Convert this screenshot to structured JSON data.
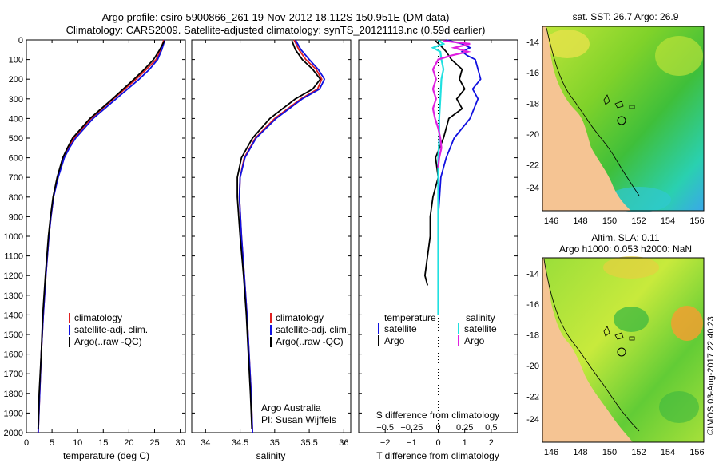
{
  "header": {
    "title_line1": "Argo profile: csiro 5900866_261 19-Nov-2012 18.112S 150.951E (DM data)",
    "title_line2": "Climatology: CARS2009. Satellite-adjusted climatology: synTS_20121119.nc (0.59d earlier)"
  },
  "colors": {
    "climatology": "#e02020",
    "satellite": "#1010e0",
    "argo": "#000000",
    "sal_satellite": "#20e0e0",
    "sal_argo": "#e020e0"
  },
  "legend": {
    "climatology": "climatology",
    "satellite_adj": "satellite-adj. clim.",
    "argo": "Argo(..raw -QC)"
  },
  "diff_legend": {
    "temperature": "temperature",
    "salinity": "salinity",
    "satellite": "satellite",
    "argo": "Argo"
  },
  "credit": {
    "line1": "Argo Australia",
    "line2": "PI: Susan Wijffels"
  },
  "depth_ticks": [
    0,
    100,
    200,
    300,
    400,
    500,
    600,
    700,
    800,
    900,
    1000,
    1100,
    1200,
    1300,
    1400,
    1500,
    1600,
    1700,
    1800,
    1900,
    2000
  ],
  "maps": {
    "sst_title": "sat. SST: 26.7 Argo: 26.9",
    "sla_title1": "Altim. SLA: 0.11",
    "sla_title2": "Argo h1000: 0.053 h2000: NaN",
    "lat_ticks": [
      "-14",
      "-16",
      "-18",
      "-20",
      "-22",
      "-24"
    ],
    "lon_ticks": [
      "146",
      "148",
      "150",
      "152",
      "154",
      "156"
    ],
    "float_lon": 150.951,
    "float_lat": -18.112
  },
  "watermark": "©IMOS 03-Aug-2017 22:40:23",
  "chart_data": [
    {
      "type": "line",
      "xlabel": "temperature (deg C)",
      "ylabel": "depth",
      "xlim": [
        0,
        31
      ],
      "ylim": [
        2000,
        0
      ],
      "xticks": [
        0,
        5,
        10,
        15,
        20,
        25,
        30
      ],
      "series": [
        {
          "name": "climatology",
          "depth": [
            0,
            50,
            100,
            150,
            200,
            300,
            400,
            500,
            550,
            600,
            700,
            800,
            900,
            1000,
            1200,
            1400,
            1600,
            1800,
            2000
          ],
          "values": [
            26.8,
            26.2,
            25.3,
            23.4,
            21.4,
            17.0,
            12.6,
            9.3,
            8.2,
            7.3,
            6.1,
            5.3,
            4.8,
            4.4,
            3.8,
            3.3,
            2.9,
            2.6,
            2.3
          ]
        },
        {
          "name": "satellite-adj. clim.",
          "depth": [
            0,
            50,
            100,
            150,
            200,
            300,
            400,
            500,
            550,
            600,
            700,
            800,
            900,
            1000,
            1200,
            1400,
            1600,
            1800,
            2000
          ],
          "values": [
            27.0,
            26.4,
            25.6,
            24.0,
            22.0,
            17.5,
            13.0,
            9.6,
            8.4,
            7.4,
            6.2,
            5.3,
            4.8,
            4.4,
            3.8,
            3.3,
            2.9,
            2.6,
            2.3
          ]
        },
        {
          "name": "Argo(..raw -QC)",
          "depth": [
            5,
            50,
            100,
            150,
            200,
            300,
            400,
            500,
            550,
            600,
            700,
            800,
            900,
            1000,
            1200,
            1400,
            1600,
            1800,
            1980
          ],
          "values": [
            26.9,
            26.0,
            24.8,
            23.0,
            21.0,
            16.8,
            12.4,
            9.0,
            8.0,
            7.1,
            6.0,
            5.2,
            4.7,
            4.3,
            3.7,
            3.2,
            2.9,
            2.5,
            2.3
          ]
        }
      ]
    },
    {
      "type": "line",
      "xlabel": "salinity",
      "ylabel": "depth",
      "xlim": [
        33.8,
        36.1
      ],
      "ylim": [
        2000,
        0
      ],
      "xticks": [
        34,
        34.5,
        35,
        35.5,
        36
      ],
      "series": [
        {
          "name": "climatology",
          "depth": [
            0,
            50,
            100,
            150,
            200,
            250,
            300,
            400,
            500,
            600,
            700,
            800,
            1000,
            1200,
            1400,
            1600,
            1800,
            2000
          ],
          "values": [
            35.28,
            35.35,
            35.45,
            35.6,
            35.68,
            35.62,
            35.38,
            35.0,
            34.72,
            34.56,
            34.5,
            34.49,
            34.52,
            34.56,
            34.6,
            34.63,
            34.66,
            34.68
          ]
        },
        {
          "name": "satellite-adj. clim.",
          "depth": [
            0,
            50,
            100,
            150,
            200,
            250,
            300,
            400,
            500,
            600,
            700,
            800,
            1000,
            1200,
            1400,
            1600,
            1800,
            2000
          ],
          "values": [
            35.3,
            35.38,
            35.5,
            35.63,
            35.72,
            35.65,
            35.4,
            35.02,
            34.73,
            34.57,
            34.5,
            34.49,
            34.52,
            34.56,
            34.6,
            34.63,
            34.66,
            34.68
          ]
        },
        {
          "name": "Argo(..raw -QC)",
          "depth": [
            5,
            50,
            100,
            150,
            200,
            250,
            300,
            400,
            500,
            600,
            700,
            800,
            1000,
            1200,
            1400,
            1600,
            1800,
            1980
          ],
          "values": [
            35.25,
            35.3,
            35.4,
            35.55,
            35.66,
            35.55,
            35.3,
            34.93,
            34.68,
            34.52,
            34.46,
            34.46,
            34.5,
            34.55,
            34.59,
            34.62,
            34.65,
            34.67
          ]
        }
      ]
    },
    {
      "type": "line",
      "xlabel": "T difference from climatology",
      "x2label": "S difference from climatology",
      "ylim": [
        2000,
        0
      ],
      "xlim": [
        -3,
        3
      ],
      "xticks": [
        -2,
        -1,
        0,
        1,
        2
      ],
      "x2ticks": [
        -0.5,
        -0.25,
        0,
        0.25,
        0.5
      ],
      "x2lim": [
        -0.75,
        0.75
      ],
      "series": [
        {
          "name": "temperature satellite",
          "axis": "T",
          "depth": [
            0,
            20,
            40,
            60,
            80,
            100,
            150,
            200,
            250,
            300,
            400,
            500,
            600,
            700,
            800,
            900,
            1000,
            1100,
            1200,
            1300,
            1400
          ],
          "values": [
            0.3,
            0.9,
            1.2,
            0.9,
            1.1,
            1.4,
            1.5,
            1.6,
            1.3,
            1.5,
            1.2,
            0.6,
            0.3,
            0.1,
            0.05,
            0.0,
            0.0,
            0.0,
            0.0,
            0.0,
            0.0
          ]
        },
        {
          "name": "temperature Argo",
          "axis": "T",
          "depth": [
            5,
            30,
            60,
            100,
            150,
            200,
            250,
            300,
            350,
            400,
            500,
            600,
            700,
            800,
            900,
            1000,
            1100,
            1200,
            1250
          ],
          "values": [
            -0.1,
            0.1,
            0.3,
            0.5,
            0.9,
            0.8,
            1.0,
            0.7,
            0.9,
            0.4,
            0.2,
            -0.1,
            0.0,
            -0.2,
            -0.3,
            -0.3,
            -0.4,
            -0.5,
            -0.4
          ]
        },
        {
          "name": "salinity satellite",
          "axis": "S",
          "depth": [
            0,
            20,
            40,
            60,
            100,
            150,
            200,
            300,
            400,
            500,
            600,
            700,
            800,
            900,
            1000,
            1100,
            1200,
            1300,
            1400
          ],
          "values": [
            0.0,
            0.05,
            -0.05,
            0.02,
            0.03,
            0.05,
            0.03,
            0.02,
            0.01,
            0.01,
            0.0,
            0.0,
            0.0,
            0.0,
            0.0,
            0.0,
            0.0,
            0.0,
            0.0
          ]
        },
        {
          "name": "salinity Argo",
          "axis": "S",
          "depth": [
            5,
            20,
            40,
            60,
            80,
            100,
            150,
            200,
            250,
            300,
            350,
            400,
            450,
            500,
            550,
            600,
            650
          ],
          "values": [
            0.05,
            0.3,
            0.15,
            0.28,
            0.12,
            0.0,
            -0.05,
            -0.02,
            -0.05,
            -0.02,
            -0.05,
            -0.03,
            0.0,
            0.02,
            0.03,
            0.01,
            0.0
          ]
        }
      ]
    }
  ]
}
